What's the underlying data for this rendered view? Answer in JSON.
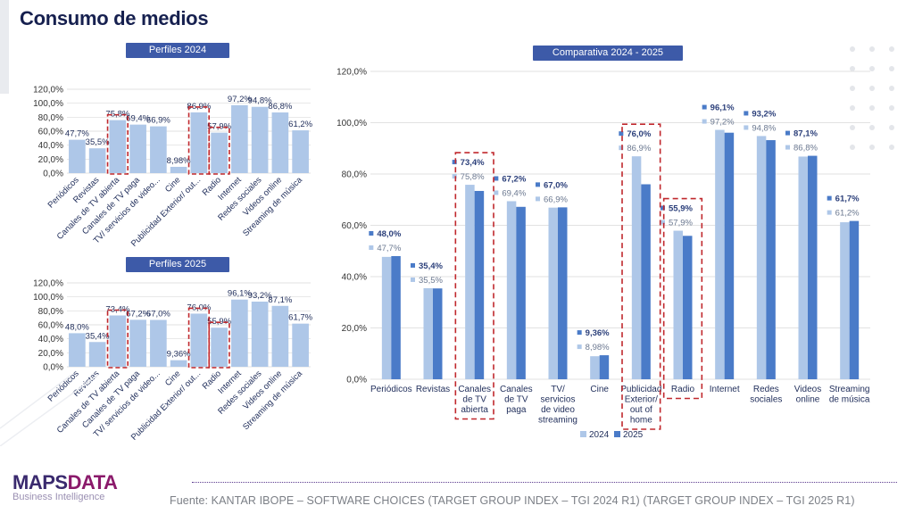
{
  "title": "Consumo de medios",
  "footer": "Fuente: KANTAR IBOPE – SOFTWARE CHOICES (TARGET GROUP INDEX – TGI 2024 R1) (TARGET GROUP INDEX – TGI 2025 R1)",
  "logo": {
    "main_a": "MAPS",
    "main_b": "DATA",
    "sub": "Business Intelligence"
  },
  "colors": {
    "series_2024": "#aec7e8",
    "series_2025": "#4a7bc8",
    "highlight_box": "#c0282d",
    "label_bg": "#3d5aa8"
  },
  "chart_data": [
    {
      "type": "bar",
      "title": "Perfiles 2024",
      "categories": [
        "Periódicos",
        "Revistas",
        "Canales de TV abierta",
        "Canales de TV paga",
        "TV/ servicios de video...",
        "Cine",
        "Publicidad Exterior/ out...",
        "Radio",
        "Internet",
        "Redes sociales",
        "Videos online",
        "Streaming de música"
      ],
      "values": [
        47.7,
        35.5,
        75.8,
        69.4,
        66.9,
        8.98,
        86.9,
        57.9,
        97.2,
        94.8,
        86.8,
        61.2
      ],
      "value_labels": [
        "47,7%",
        "35,5%",
        "75,8%",
        "69,4%",
        "66,9%",
        "8,98%",
        "86,9%",
        "57,9%",
        "97,2%",
        "94,8%",
        "86,8%",
        "61,2%"
      ],
      "y_ticks": [
        "0,0%",
        "20,0%",
        "40,0%",
        "60,0%",
        "80,0%",
        "100,0%",
        "120,0%"
      ],
      "ylim": [
        0,
        120
      ],
      "highlighted": [
        2,
        6,
        7
      ]
    },
    {
      "type": "bar",
      "title": "Perfiles 2025",
      "categories": [
        "Periódicos",
        "Revistas",
        "Canales de TV abierta",
        "Canales de TV paga",
        "TV/ servicios de video...",
        "Cine",
        "Publicidad Exterior/ out...",
        "Radio",
        "Internet",
        "Redes sociales",
        "Videos online",
        "Streaming de música"
      ],
      "values": [
        48.0,
        35.4,
        73.4,
        67.2,
        67.0,
        9.36,
        76.0,
        55.9,
        96.1,
        93.2,
        87.1,
        61.7
      ],
      "value_labels": [
        "48,0%",
        "35,4%",
        "73,4%",
        "67,2%",
        "67,0%",
        "9,36%",
        "76,0%",
        "55,9%",
        "96,1%",
        "93,2%",
        "87,1%",
        "61,7%"
      ],
      "y_ticks": [
        "0,0%",
        "20,0%",
        "40,0%",
        "60,0%",
        "80,0%",
        "100,0%",
        "120,0%"
      ],
      "ylim": [
        0,
        120
      ],
      "highlighted": [
        2,
        6,
        7
      ]
    },
    {
      "type": "bar",
      "title": "Comparativa 2024 - 2025",
      "categories": [
        [
          "Periódicos"
        ],
        [
          "Revistas"
        ],
        [
          "Canales",
          "de TV",
          "abierta"
        ],
        [
          "Canales",
          "de TV",
          "paga"
        ],
        [
          "TV/",
          "servicios",
          "de video",
          "streaming"
        ],
        [
          "Cine"
        ],
        [
          "Publicidad",
          "Exterior/",
          "out of",
          "home"
        ],
        [
          "Radio"
        ],
        [
          "Internet"
        ],
        [
          "Redes",
          "sociales"
        ],
        [
          "Videos",
          "online"
        ],
        [
          "Streaming",
          "de música"
        ]
      ],
      "series": [
        {
          "name": "2024",
          "values": [
            47.7,
            35.5,
            75.8,
            69.4,
            66.9,
            8.98,
            86.9,
            57.9,
            97.2,
            94.8,
            86.8,
            61.2
          ],
          "labels": [
            "47,7%",
            "35,5%",
            "75,8%",
            "69,4%",
            "66,9%",
            "8,98%",
            "86,9%",
            "57,9%",
            "97,2%",
            "94,8%",
            "86,8%",
            "61,2%"
          ]
        },
        {
          "name": "2025",
          "values": [
            48.0,
            35.4,
            73.4,
            67.2,
            67.0,
            9.36,
            76.0,
            55.9,
            96.1,
            93.2,
            87.1,
            61.7
          ],
          "labels": [
            "48,0%",
            "35,4%",
            "73,4%",
            "67,2%",
            "67,0%",
            "9,36%",
            "76,0%",
            "55,9%",
            "96,1%",
            "93,2%",
            "87,1%",
            "61,7%"
          ]
        }
      ],
      "y_ticks": [
        "0,0%",
        "20,0%",
        "40,0%",
        "60,0%",
        "80,0%",
        "100,0%",
        "120,0%"
      ],
      "ylim": [
        0,
        120
      ],
      "legend_position": "bottom",
      "highlighted": [
        2,
        6,
        7
      ]
    }
  ]
}
